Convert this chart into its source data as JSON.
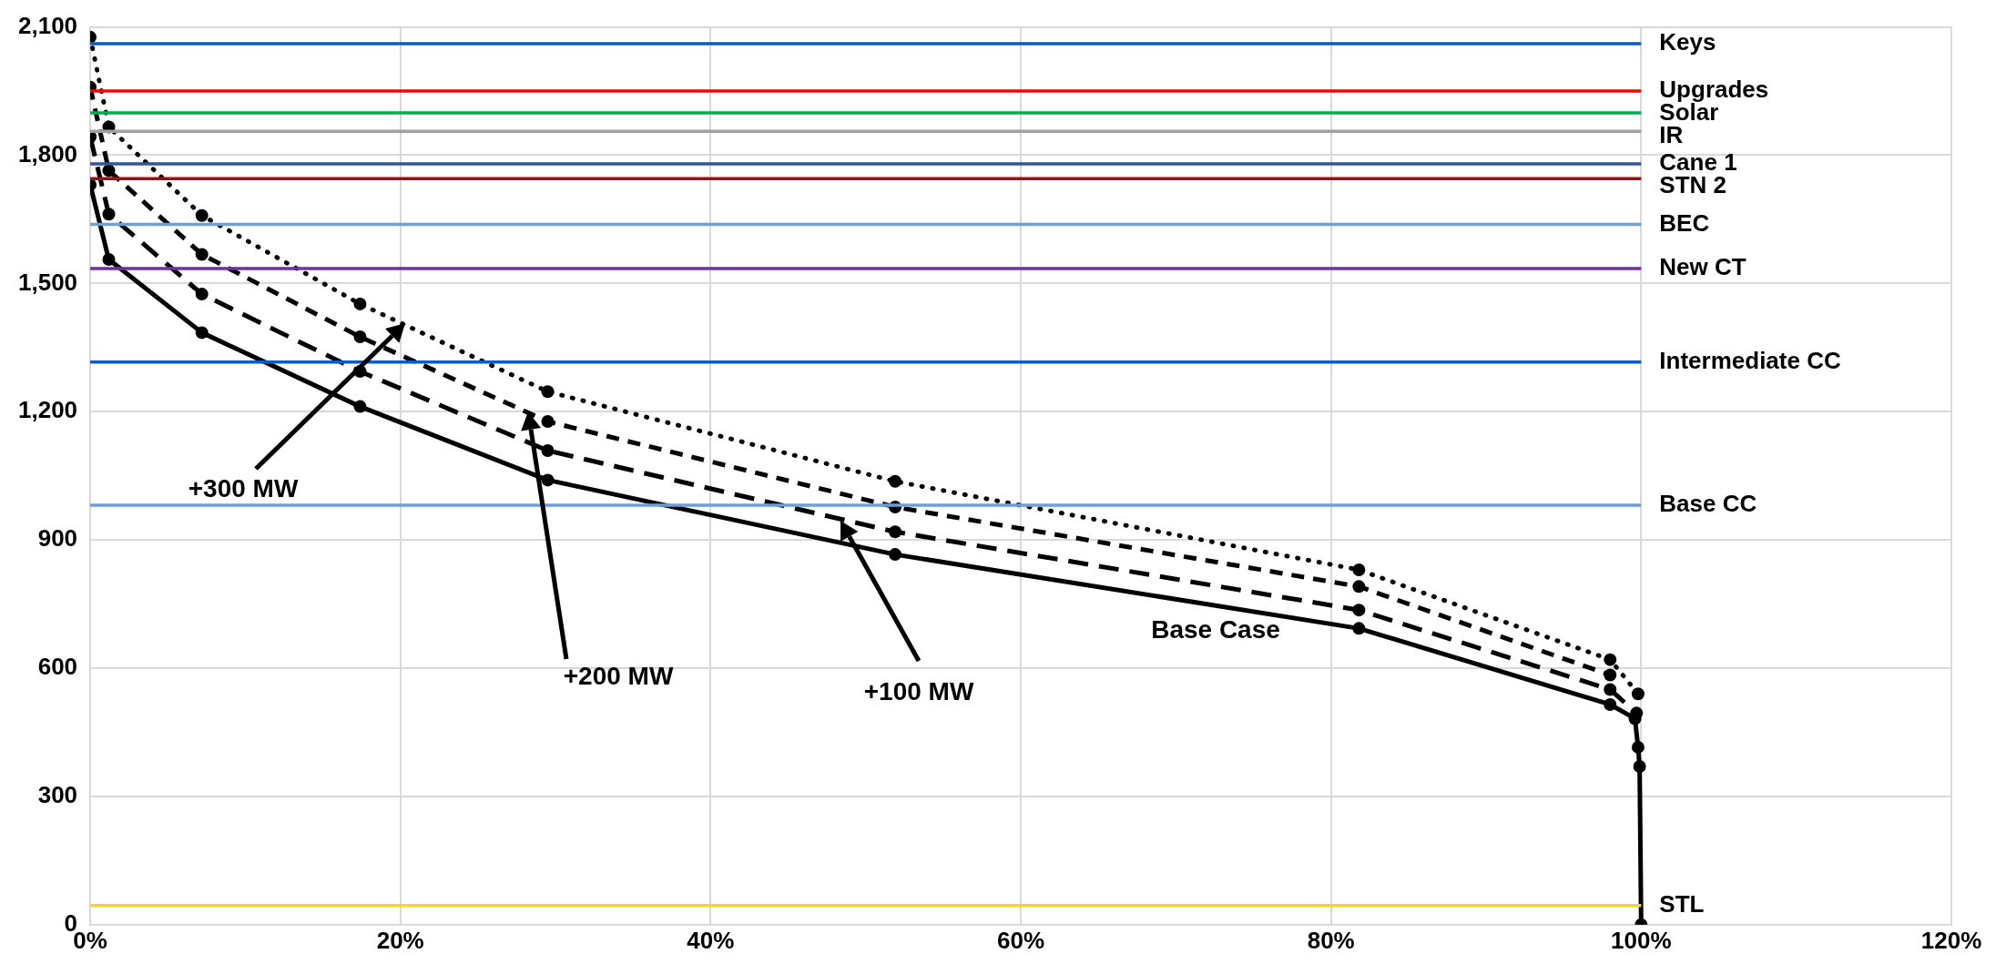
{
  "chart_data": {
    "type": "line",
    "xlim": [
      0,
      120
    ],
    "ylim": [
      0,
      2100
    ],
    "xticks": [
      {
        "value": 0,
        "label": "0%"
      },
      {
        "value": 20,
        "label": "20%"
      },
      {
        "value": 40,
        "label": "40%"
      },
      {
        "value": 60,
        "label": "60%"
      },
      {
        "value": 80,
        "label": "80%"
      },
      {
        "value": 100,
        "label": "100%"
      },
      {
        "value": 120,
        "label": "120%"
      }
    ],
    "yticks": [
      0,
      300,
      600,
      900,
      {
        "value": 1200,
        "label": "1,200"
      },
      {
        "value": 1500,
        "label": "1,500"
      },
      {
        "value": 1800,
        "label": "1,800"
      },
      {
        "value": 2100,
        "label": "2,100"
      }
    ],
    "grid": true,
    "legend": false,
    "marker": "circle",
    "series": [
      {
        "color": "#000000",
        "line_style": "solid",
        "x": [
          0,
          1.2,
          7.2,
          17.4,
          29.5,
          51.9,
          81.8,
          98,
          99.6,
          99.8,
          99.9,
          100
        ],
        "values": [
          1731,
          1556,
          1385,
          1212,
          1040,
          866,
          693,
          515,
          482,
          415,
          370,
          0
        ]
      },
      {
        "color": "#000000",
        "line_style": "dashed",
        "x": [
          0,
          1.2,
          7.2,
          17.4,
          29.5,
          51.9,
          81.8,
          98,
          99.7
        ],
        "values": [
          1843,
          1662,
          1475,
          1294,
          1109,
          919,
          736,
          550,
          495
        ]
      },
      {
        "color": "#000000",
        "line_style": "dashed",
        "x": [
          0,
          1.2,
          7.2,
          17.4,
          29.5,
          51.9,
          81.8,
          98
        ],
        "values": [
          1959,
          1764,
          1568,
          1375,
          1177,
          977,
          791,
          584
        ]
      },
      {
        "color": "#000000",
        "line_style": "dotted",
        "x": [
          0,
          1.2,
          7.2,
          17.4,
          29.5,
          51.9,
          81.8,
          98,
          99.8
        ],
        "values": [
          2076,
          1866,
          1659,
          1452,
          1247,
          1037,
          830,
          620,
          540
        ]
      }
    ],
    "ref_lines": [
      {
        "axis": "y",
        "value": 2061,
        "label": "Keys",
        "color": "#0f5bc4"
      },
      {
        "axis": "y",
        "value": 1950,
        "label": "Upgrades",
        "color": "#ff0000"
      },
      {
        "axis": "y",
        "value": 1899,
        "label": "Solar",
        "color": "#00b050"
      },
      {
        "axis": "y",
        "value": 1856,
        "label": "IR",
        "color": "#a0a0a0"
      },
      {
        "axis": "y",
        "value": 1780,
        "label": "Cane 1",
        "color": "#2f5597"
      },
      {
        "axis": "y",
        "value": 1745,
        "label": "STN 2",
        "color": "#9b1111"
      },
      {
        "axis": "y",
        "value": 1638,
        "label": "BEC",
        "color": "#6a9fe0"
      },
      {
        "axis": "y",
        "value": 1535,
        "label": "New CT",
        "color": "#7030a0"
      },
      {
        "axis": "y",
        "value": 1316,
        "label": "Intermediate CC",
        "color": "#0f5bc4"
      },
      {
        "axis": "y",
        "value": 981,
        "label": "Base CC",
        "color": "#6a9fe0"
      },
      {
        "axis": "y",
        "value": 45,
        "label": "STL",
        "color": "#f5d327"
      }
    ],
    "annotations": [
      "+300 MW",
      "+200 MW",
      "+100 MW",
      "Base Case"
    ]
  }
}
